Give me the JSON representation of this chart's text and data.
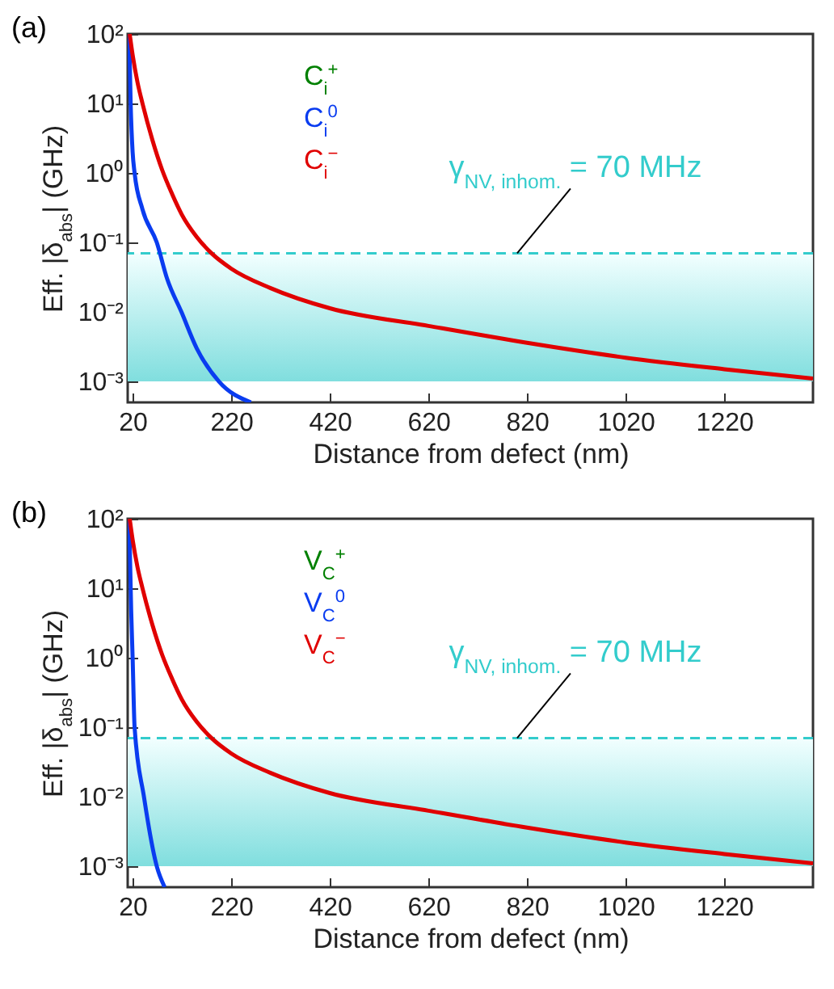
{
  "chart_data": [
    {
      "type": "line",
      "title": "(a)",
      "xlabel": "Distance from defect (nm)",
      "ylabel": "Eff. |δ$_{abs}$| (GHz)",
      "log": "y",
      "xlim": [
        10,
        1400
      ],
      "xticks": [
        20,
        220,
        420,
        620,
        820,
        1020,
        1220
      ],
      "ylim": [
        0.0005,
        100
      ],
      "yticks": [
        {
          "value": 0.001,
          "label": "10⁻³"
        },
        {
          "value": 0.01,
          "label": "10⁻²"
        },
        {
          "value": 0.1,
          "label": "10⁻¹"
        },
        {
          "value": 1,
          "label": "10⁰"
        },
        {
          "value": 10,
          "label": "10¹"
        },
        {
          "value": 100,
          "label": "10²"
        }
      ],
      "legend": "top left",
      "line_style": "solid",
      "ref_lines": [
        {
          "axis": "y",
          "value": 0.07,
          "color": "#33cccc",
          "line_style": "dashed"
        }
      ],
      "bands": [
        {
          "axis": "y",
          "from": 0.001,
          "to": 0.07,
          "color": "#80dede"
        }
      ],
      "annotations": [
        {
          "text": "γ$_{NV, inhom.}$ = 70 MHz",
          "x": 800,
          "y": 0.07
        }
      ],
      "series": [
        {
          "name": "C$_{i}$$^{+}$",
          "color": "#008000"
        },
        {
          "name": "C$_{i}$$^{0}$",
          "color": "#0a3cf0",
          "x": [
            13,
            16,
            20,
            24,
            40,
            69,
            90,
            119,
            150,
            195,
            260
          ],
          "values": [
            100,
            10,
            2,
            1,
            0.3,
            0.1,
            0.03,
            0.01,
            0.003,
            0.001,
            0.0005
          ]
        },
        {
          "name": "C$_{i}$$^{−}$",
          "color": "#e00000",
          "x": [
            14,
            20,
            30,
            40,
            60,
            80,
            100,
            120,
            150,
            180,
            220,
            300,
            420,
            620,
            820,
            1020,
            1220,
            1400
          ],
          "values": [
            100,
            50,
            20,
            10,
            3,
            1.1,
            0.5,
            0.25,
            0.12,
            0.07,
            0.042,
            0.022,
            0.0113,
            0.0063,
            0.0036,
            0.0022,
            0.0015,
            0.0011
          ]
        }
      ]
    },
    {
      "type": "line",
      "title": "(b)",
      "xlabel": "Distance from defect (nm)",
      "ylabel": "Eff. |δ$_{abs}$| (GHz)",
      "log": "y",
      "xlim": [
        10,
        1400
      ],
      "xticks": [
        20,
        220,
        420,
        620,
        820,
        1020,
        1220
      ],
      "ylim": [
        0.0005,
        100
      ],
      "yticks": [
        {
          "value": 0.001,
          "label": "10⁻³"
        },
        {
          "value": 0.01,
          "label": "10⁻²"
        },
        {
          "value": 0.1,
          "label": "10⁻¹"
        },
        {
          "value": 1,
          "label": "10⁰"
        },
        {
          "value": 10,
          "label": "10¹"
        },
        {
          "value": 100,
          "label": "10²"
        }
      ],
      "legend": "top left",
      "line_style": "solid",
      "ref_lines": [
        {
          "axis": "y",
          "value": 0.07,
          "color": "#33cccc",
          "line_style": "dashed"
        }
      ],
      "bands": [
        {
          "axis": "y",
          "from": 0.001,
          "to": 0.07,
          "color": "#80dede"
        }
      ],
      "annotations": [
        {
          "text": "γ$_{NV, inhom.}$ = 70 MHz",
          "x": 800,
          "y": 0.07
        }
      ],
      "series": [
        {
          "name": "V$_{C}$$^{+}$",
          "color": "#008000"
        },
        {
          "name": "V$_{C}$$^{0}$",
          "color": "#0a3cf0",
          "x": [
            13,
            17,
            20,
            24,
            43,
            69,
            85
          ],
          "values": [
            100,
            5,
            1,
            0.1,
            0.01,
            0.001,
            0.0005
          ]
        },
        {
          "name": "V$_{C}$$^{−}$",
          "color": "#e00000",
          "x": [
            14,
            20,
            30,
            40,
            60,
            80,
            100,
            120,
            150,
            180,
            220,
            300,
            420,
            620,
            820,
            1020,
            1220,
            1400
          ],
          "values": [
            100,
            50,
            20,
            10,
            3,
            1.1,
            0.5,
            0.25,
            0.12,
            0.07,
            0.042,
            0.022,
            0.0113,
            0.0063,
            0.0036,
            0.0022,
            0.0015,
            0.0011
          ]
        }
      ]
    }
  ]
}
